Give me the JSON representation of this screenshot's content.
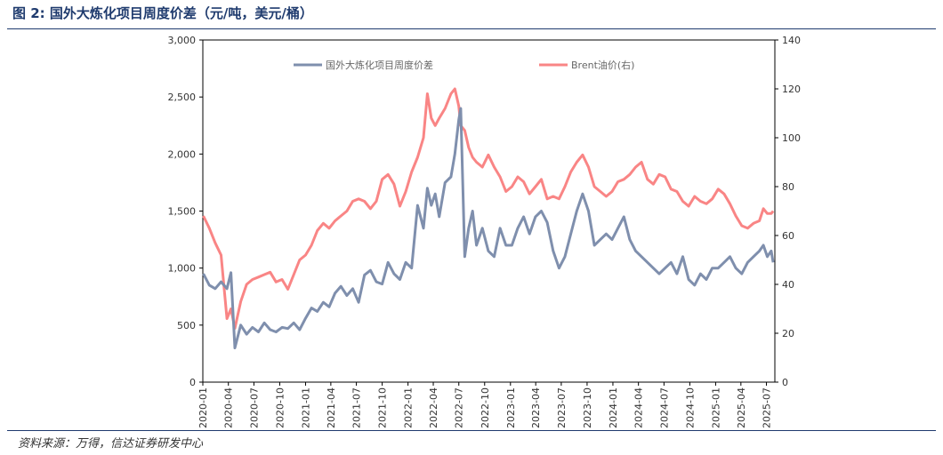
{
  "figure": {
    "title": "图 2:  国外大炼化项目周度价差（元/吨，美元/桶）",
    "source": "资料来源：万得，信达证券研发中心"
  },
  "chart_data": {
    "type": "line",
    "title": "",
    "xlabel": "",
    "ylabel_left": "",
    "ylabel_right": "",
    "ylim_left": [
      0,
      3000
    ],
    "ylim_right": [
      0,
      140
    ],
    "yticks_left": [
      "0",
      "500",
      "1,000",
      "1,500",
      "2,000",
      "2,500",
      "3,000"
    ],
    "yticks_right": [
      "0",
      "20",
      "40",
      "60",
      "80",
      "100",
      "120",
      "140"
    ],
    "x_tick_labels": [
      "2020-01",
      "2020-04",
      "2020-07",
      "2020-10",
      "2021-01",
      "2021-04",
      "2021-07",
      "2021-10",
      "2022-01",
      "2022-04",
      "2022-07",
      "2022-10",
      "2023-01",
      "2023-04",
      "2023-07",
      "2023-10",
      "2024-01",
      "2024-04",
      "2024-07",
      "2024-10",
      "2025-01",
      "2025-04",
      "2025-07"
    ],
    "legend_position": "top",
    "grid": false,
    "colors": {
      "spread": "#7f8fad",
      "brent": "#f98585"
    },
    "series": [
      {
        "name": "国外大炼化项目周度价差",
        "axis": "left",
        "x": [
          "2020-01-03",
          "2020-01-24",
          "2020-02-14",
          "2020-03-06",
          "2020-03-27",
          "2020-04-10",
          "2020-04-24",
          "2020-05-15",
          "2020-06-05",
          "2020-06-26",
          "2020-07-17",
          "2020-08-07",
          "2020-08-28",
          "2020-09-18",
          "2020-10-09",
          "2020-10-30",
          "2020-11-20",
          "2020-12-11",
          "2021-01-01",
          "2021-01-22",
          "2021-02-12",
          "2021-03-05",
          "2021-03-26",
          "2021-04-16",
          "2021-05-07",
          "2021-05-28",
          "2021-06-18",
          "2021-07-09",
          "2021-07-30",
          "2021-08-20",
          "2021-09-10",
          "2021-10-01",
          "2021-10-22",
          "2021-11-12",
          "2021-12-03",
          "2021-12-24",
          "2022-01-14",
          "2022-02-04",
          "2022-02-25",
          "2022-03-11",
          "2022-03-25",
          "2022-04-08",
          "2022-04-22",
          "2022-05-13",
          "2022-06-03",
          "2022-06-17",
          "2022-07-01",
          "2022-07-08",
          "2022-07-22",
          "2022-08-05",
          "2022-08-19",
          "2022-09-02",
          "2022-09-23",
          "2022-10-14",
          "2022-11-04",
          "2022-11-25",
          "2022-12-16",
          "2023-01-06",
          "2023-01-27",
          "2023-02-17",
          "2023-03-10",
          "2023-03-31",
          "2023-04-21",
          "2023-05-12",
          "2023-06-02",
          "2023-06-23",
          "2023-07-14",
          "2023-08-04",
          "2023-08-25",
          "2023-09-15",
          "2023-10-06",
          "2023-10-27",
          "2023-11-17",
          "2023-12-08",
          "2023-12-29",
          "2024-01-19",
          "2024-02-09",
          "2024-03-01",
          "2024-03-22",
          "2024-04-12",
          "2024-05-03",
          "2024-05-24",
          "2024-06-14",
          "2024-07-05",
          "2024-07-26",
          "2024-08-16",
          "2024-09-06",
          "2024-09-27",
          "2024-10-18",
          "2024-11-08",
          "2024-11-29",
          "2024-12-20",
          "2025-01-10",
          "2025-01-31",
          "2025-02-21",
          "2025-03-14",
          "2025-04-04",
          "2025-04-25",
          "2025-05-16",
          "2025-06-06",
          "2025-06-20",
          "2025-07-04",
          "2025-07-18",
          "2025-07-25"
        ],
        "values": [
          950,
          850,
          820,
          880,
          820,
          960,
          300,
          500,
          420,
          480,
          440,
          520,
          460,
          440,
          480,
          470,
          520,
          460,
          560,
          650,
          620,
          700,
          660,
          780,
          840,
          760,
          820,
          700,
          940,
          980,
          880,
          860,
          1050,
          950,
          900,
          1050,
          1000,
          1550,
          1350,
          1700,
          1550,
          1650,
          1450,
          1750,
          1800,
          2000,
          2300,
          2400,
          1100,
          1350,
          1500,
          1200,
          1350,
          1150,
          1100,
          1350,
          1200,
          1200,
          1350,
          1450,
          1300,
          1450,
          1500,
          1400,
          1150,
          1000,
          1100,
          1300,
          1500,
          1650,
          1500,
          1200,
          1250,
          1300,
          1250,
          1350,
          1450,
          1250,
          1150,
          1100,
          1050,
          1000,
          950,
          1000,
          1050,
          950,
          1100,
          900,
          850,
          950,
          900,
          1000,
          1000,
          1050,
          1100,
          1000,
          950,
          1050,
          1100,
          1150,
          1200,
          1100,
          1150,
          1050
        ]
      },
      {
        "name": "Brent油价(右)",
        "axis": "right",
        "x": [
          "2020-01-03",
          "2020-01-24",
          "2020-02-14",
          "2020-03-06",
          "2020-03-27",
          "2020-04-10",
          "2020-04-24",
          "2020-05-15",
          "2020-06-05",
          "2020-06-26",
          "2020-07-17",
          "2020-08-07",
          "2020-08-28",
          "2020-09-18",
          "2020-10-09",
          "2020-10-30",
          "2020-11-20",
          "2020-12-11",
          "2021-01-01",
          "2021-01-22",
          "2021-02-12",
          "2021-03-05",
          "2021-03-26",
          "2021-04-16",
          "2021-05-07",
          "2021-05-28",
          "2021-06-18",
          "2021-07-09",
          "2021-07-30",
          "2021-08-20",
          "2021-09-10",
          "2021-10-01",
          "2021-10-22",
          "2021-11-12",
          "2021-12-03",
          "2021-12-24",
          "2022-01-14",
          "2022-02-04",
          "2022-02-25",
          "2022-03-11",
          "2022-03-25",
          "2022-04-08",
          "2022-04-22",
          "2022-05-13",
          "2022-06-03",
          "2022-06-17",
          "2022-07-01",
          "2022-07-08",
          "2022-07-22",
          "2022-08-05",
          "2022-08-19",
          "2022-09-02",
          "2022-09-23",
          "2022-10-14",
          "2022-11-04",
          "2022-11-25",
          "2022-12-16",
          "2023-01-06",
          "2023-01-27",
          "2023-02-17",
          "2023-03-10",
          "2023-03-31",
          "2023-04-21",
          "2023-05-12",
          "2023-06-02",
          "2023-06-23",
          "2023-07-14",
          "2023-08-04",
          "2023-08-25",
          "2023-09-15",
          "2023-10-06",
          "2023-10-27",
          "2023-11-17",
          "2023-12-08",
          "2023-12-29",
          "2024-01-19",
          "2024-02-09",
          "2024-03-01",
          "2024-03-22",
          "2024-04-12",
          "2024-05-03",
          "2024-05-24",
          "2024-06-14",
          "2024-07-05",
          "2024-07-26",
          "2024-08-16",
          "2024-09-06",
          "2024-09-27",
          "2024-10-18",
          "2024-11-08",
          "2024-11-29",
          "2024-12-20",
          "2025-01-10",
          "2025-01-31",
          "2025-02-21",
          "2025-03-14",
          "2025-04-04",
          "2025-04-25",
          "2025-05-16",
          "2025-06-06",
          "2025-06-20",
          "2025-07-04",
          "2025-07-18",
          "2025-07-25"
        ],
        "values": [
          68,
          63,
          57,
          52,
          26,
          30,
          22,
          33,
          40,
          42,
          43,
          44,
          45,
          41,
          42,
          38,
          44,
          50,
          52,
          56,
          62,
          65,
          63,
          66,
          68,
          70,
          74,
          75,
          74,
          71,
          74,
          83,
          85,
          81,
          72,
          78,
          86,
          92,
          100,
          118,
          108,
          105,
          108,
          112,
          118,
          120,
          113,
          105,
          103,
          96,
          92,
          90,
          88,
          93,
          88,
          84,
          78,
          80,
          84,
          82,
          77,
          80,
          83,
          75,
          76,
          75,
          80,
          86,
          90,
          93,
          88,
          80,
          78,
          76,
          78,
          82,
          83,
          85,
          88,
          90,
          83,
          81,
          85,
          84,
          79,
          78,
          74,
          72,
          76,
          74,
          73,
          75,
          79,
          77,
          73,
          68,
          64,
          63,
          65,
          66,
          71,
          69,
          69,
          70
        ]
      }
    ]
  }
}
